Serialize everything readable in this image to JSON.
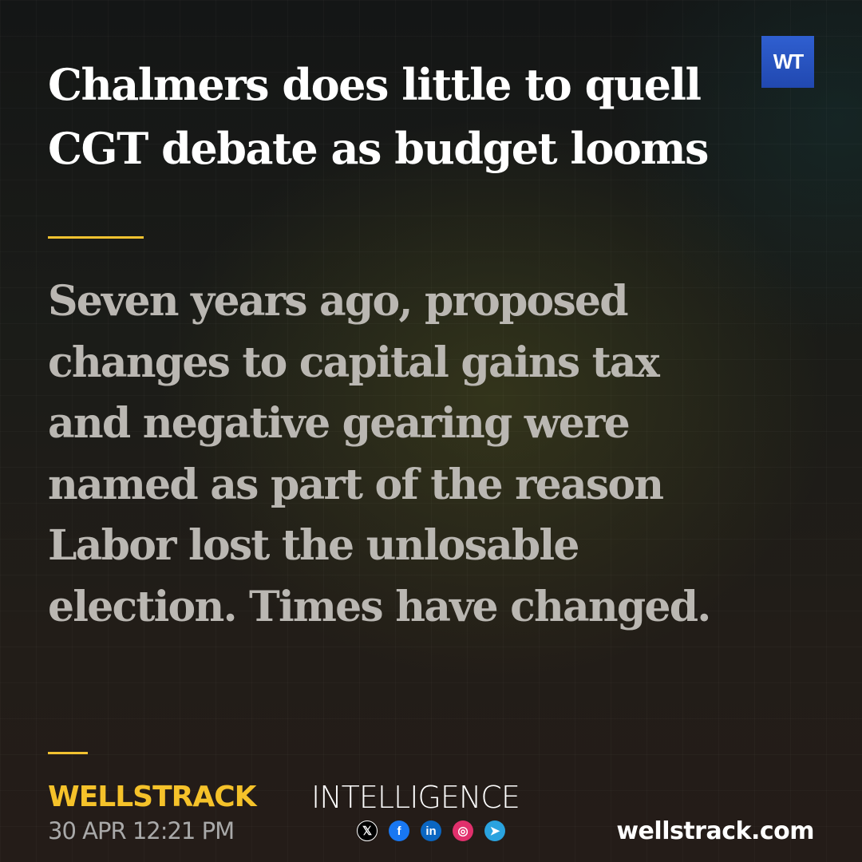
{
  "headline": {
    "lines": [
      "Chalmers does little to quell",
      "CGT debate as budget looms"
    ]
  },
  "logo": {
    "text": "WT"
  },
  "summary": {
    "lines": [
      "Seven years ago, proposed",
      "changes to capital gains tax",
      "and negative gearing were",
      "named as part of the reason",
      "Labor lost the unlosable",
      "election. Times have changed."
    ]
  },
  "footer": {
    "brand": "WELLSTRACK",
    "date": "30 APR 12:21 PM",
    "section": "INTELLIGENCE",
    "website": "wellstrack.com",
    "social": [
      {
        "icon": "x-icon",
        "glyph": "𝕏",
        "color": "#000000"
      },
      {
        "icon": "facebook-icon",
        "glyph": "f",
        "color": "#1877f2"
      },
      {
        "icon": "linkedin-icon",
        "glyph": "in",
        "color": "#0a66c2"
      },
      {
        "icon": "instagram-icon",
        "glyph": "◎",
        "color": "#e1306c"
      },
      {
        "icon": "telegram-icon",
        "glyph": "➤",
        "color": "#2aa3df"
      }
    ]
  },
  "colors": {
    "accent": "#f2c230",
    "logo_bg": "#2f5fd0"
  }
}
